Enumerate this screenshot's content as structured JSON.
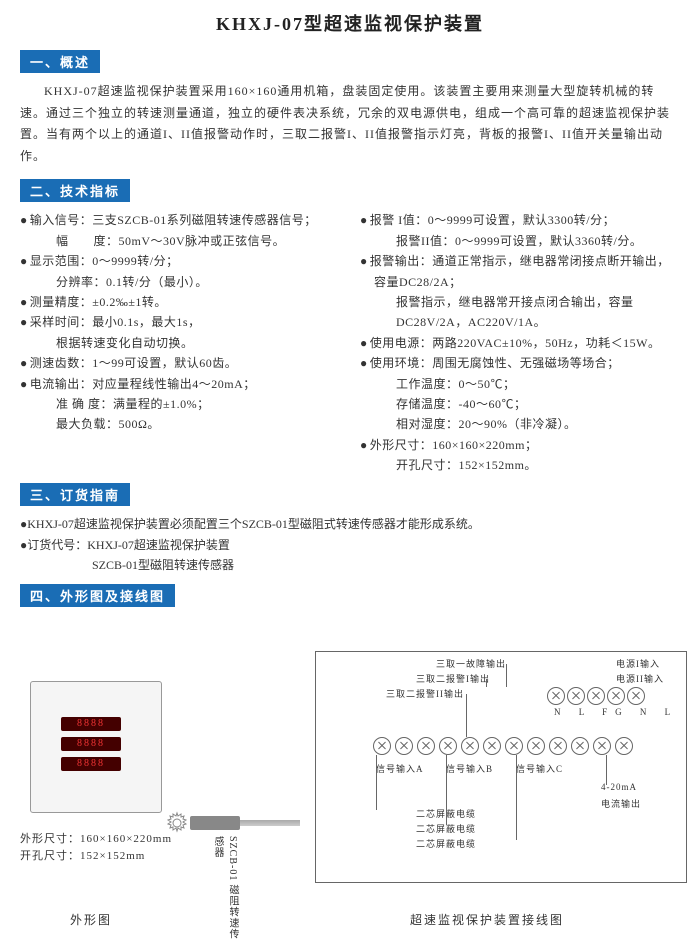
{
  "title": "KHXJ-07型超速监视保护装置",
  "sections": {
    "overview_header": "一、概述",
    "specs_header": "二、技术指标",
    "order_header": "三、订货指南",
    "diagram_header": "四、外形图及接线图"
  },
  "overview": "KHXJ-07超速监视保护装置采用160×160通用机箱，盘装固定使用。该装置主要用来测量大型旋转机械的转速。通过三个独立的转速测量通道，独立的硬件表决系统，冗余的双电源供电，组成一个高可靠的超速监视保护装置。当有两个以上的通道I、II值报警动作时，三取二报警I、II值报警指示灯亮，背板的报警I、II值开关量输出动作。",
  "specs_left": [
    {
      "type": "b",
      "t": "输入信号：三支SZCB-01系列磁阻转速传感器信号；"
    },
    {
      "type": "s",
      "t": "幅　　度：50mV～30V脉冲或正弦信号。"
    },
    {
      "type": "b",
      "t": "显示范围：0～9999转/分；"
    },
    {
      "type": "s",
      "t": "分辨率：0.1转/分（最小）。"
    },
    {
      "type": "b",
      "t": "测量精度：±0.2‰±1转。"
    },
    {
      "type": "b",
      "t": "采样时间：最小0.1s，最大1s，"
    },
    {
      "type": "s",
      "t": "根据转速变化自动切换。"
    },
    {
      "type": "b",
      "t": "测速齿数：1～99可设置，默认60齿。"
    },
    {
      "type": "b",
      "t": "电流输出：对应量程线性输出4～20mA；"
    },
    {
      "type": "s",
      "t": "准 确 度：满量程的±1.0%；"
    },
    {
      "type": "s",
      "t": "最大负载：500Ω。"
    }
  ],
  "specs_right": [
    {
      "type": "b",
      "t": "报警 I值：0～9999可设置，默认3300转/分；"
    },
    {
      "type": "s",
      "t": "报警II值：0～9999可设置，默认3360转/分。"
    },
    {
      "type": "b",
      "t": "报警输出：通道正常指示，继电器常闭接点断开输出，容量DC28/2A；"
    },
    {
      "type": "s",
      "t": "报警指示，继电器常开接点闭合输出，容量DC28V/2A，AC220V/1A。"
    },
    {
      "type": "b",
      "t": "使用电源：两路220VAC±10%，50Hz，功耗＜15W。"
    },
    {
      "type": "b",
      "t": "使用环境：周围无腐蚀性、无强磁场等场合；"
    },
    {
      "type": "s",
      "t": "工作温度：0～50℃；"
    },
    {
      "type": "s",
      "t": "存储温度：-40～60℃；"
    },
    {
      "type": "s",
      "t": "相对湿度：20～90%（非冷凝）。"
    },
    {
      "type": "b",
      "t": "外形尺寸：160×160×220mm；"
    },
    {
      "type": "s",
      "t": "开孔尺寸：152×152mm。"
    }
  ],
  "order": {
    "line1": "●KHXJ-07超速监视保护装置必须配置三个SZCB-01型磁阻式转速传感器才能形成系统。",
    "line2": "●订货代号：KHXJ-07超速监视保护装置",
    "line3": "　　　　　　SZCB-01型磁阻转速传感器"
  },
  "diagram": {
    "dev_dim1": "外形尺寸：160×160×220mm",
    "dev_dim2": "开孔尺寸：152×152mm",
    "sensor_label": "SZCB-01 磁阻转速传感器",
    "caption_left": "外形图",
    "caption_right": "超速监视保护装置接线图",
    "wiring_labels": {
      "power1": "电源I输入",
      "power2": "电源II输入",
      "fault": "三取一故障输出",
      "alarm1": "三取二报警I输出",
      "alarm2": "三取二报警II输出",
      "nlfg": "N L FG N L",
      "siga": "信号输入A",
      "sigb": "信号输入B",
      "sigc": "信号输入C",
      "i420": "4-20mA",
      "iout": "电流输出",
      "cable": "二芯屏蔽电缆"
    }
  },
  "colors": {
    "header_bg": "#1a6db5",
    "text": "#333333",
    "led": "#e33333"
  }
}
